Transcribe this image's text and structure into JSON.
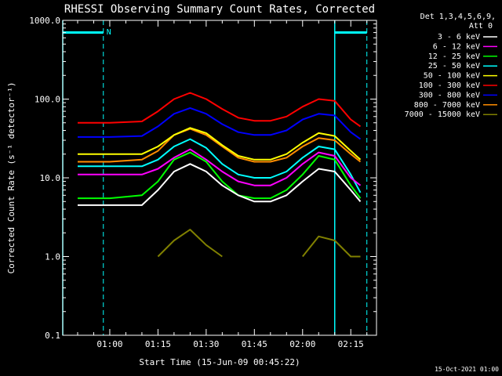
{
  "chart_data": {
    "type": "line",
    "title": "RHESSI Observing Summary Count Rates, Corrected",
    "xlabel": "Start Time (15-Jun-09 00:45:22)",
    "ylabel": "Corrected Count Rate (s⁻¹ detector⁻¹)",
    "y_scale": "log",
    "ylim": [
      0.1,
      1000.0
    ],
    "xlim": [
      "00:45:22",
      "02:23:00"
    ],
    "y_ticks": [
      "0.1",
      "1.0",
      "10.0",
      "100.0",
      "1000.0"
    ],
    "x_ticks": [
      "01:00",
      "01:15",
      "01:30",
      "01:45",
      "02:00",
      "02:15"
    ],
    "legend_header": [
      "Det 1,3,4,5,6,9,",
      "Att 0"
    ],
    "legend_placement": "right",
    "stamp": "15-Oct-2021 01:00",
    "marker_N": "N",
    "markers": {
      "night_bars": [
        [
          "00:45:22",
          "00:58:00"
        ],
        [
          "02:10:00",
          "02:20:00"
        ]
      ],
      "saa_lines": [
        "00:45:22",
        "02:10:00"
      ],
      "dashed_lines": [
        "00:58:00",
        "02:20:00"
      ]
    },
    "x": [
      "00:50",
      "01:00",
      "01:10",
      "01:15",
      "01:20",
      "01:25",
      "01:30",
      "01:35",
      "01:40",
      "01:45",
      "01:50",
      "01:55",
      "02:00",
      "02:05",
      "02:10",
      "02:15",
      "02:18"
    ],
    "series": [
      {
        "name": "3 - 6 keV",
        "color": "#ffffff",
        "values": [
          4.5,
          4.5,
          4.5,
          7.0,
          12.0,
          15.0,
          12.0,
          8.0,
          6.0,
          5.0,
          5.0,
          6.0,
          9.0,
          13.0,
          12.0,
          7.0,
          5.0
        ]
      },
      {
        "name": "6 - 12 keV",
        "color": "#ff00ff",
        "values": [
          11.0,
          11.0,
          11.0,
          13.0,
          18.0,
          23.0,
          17.0,
          12.0,
          9.0,
          8.0,
          8.0,
          10.0,
          15.0,
          21.0,
          19.0,
          10.0,
          8.0
        ]
      },
      {
        "name": "12 - 25 keV",
        "color": "#00ff00",
        "values": [
          5.5,
          5.5,
          6.0,
          9.0,
          17.0,
          21.0,
          16.0,
          9.0,
          6.0,
          5.5,
          5.5,
          7.0,
          11.0,
          19.0,
          17.0,
          8.0,
          5.5
        ]
      },
      {
        "name": "25 - 50 keV",
        "color": "#00ffff",
        "values": [
          14.0,
          14.0,
          14.0,
          17.0,
          25.0,
          31.0,
          24.0,
          15.0,
          11.0,
          10.0,
          10.0,
          12.0,
          18.0,
          25.0,
          23.0,
          11.0,
          6.5
        ]
      },
      {
        "name": "50 - 100 keV",
        "color": "#ffff00",
        "values": [
          20.0,
          20.0,
          20.0,
          25.0,
          35.0,
          43.0,
          37.0,
          26.0,
          19.0,
          17.0,
          17.0,
          20.0,
          28.0,
          37.0,
          34.0,
          22.0,
          17.0
        ]
      },
      {
        "name": "100 - 300 keV",
        "color": "#ff0000",
        "values": [
          50.0,
          50.0,
          52.0,
          70.0,
          100.0,
          120.0,
          100.0,
          75.0,
          58.0,
          53.0,
          53.0,
          60.0,
          80.0,
          100.0,
          95.0,
          55.0,
          45.0
        ]
      },
      {
        "name": "300 - 800 keV",
        "color": "#0000ff",
        "values": [
          33.0,
          33.0,
          34.0,
          45.0,
          65.0,
          77.0,
          65.0,
          48.0,
          38.0,
          35.0,
          35.0,
          40.0,
          55.0,
          65.0,
          62.0,
          38.0,
          31.0
        ]
      },
      {
        "name": "800 - 7000 keV",
        "color": "#ff8c00",
        "values": [
          16.0,
          16.0,
          17.0,
          22.0,
          35.0,
          42.0,
          35.0,
          25.0,
          18.0,
          16.0,
          16.0,
          18.0,
          25.0,
          32.0,
          30.0,
          20.0,
          16.0
        ]
      },
      {
        "name": "7000 - 15000 keV",
        "color": "#808000",
        "values": [
          null,
          null,
          null,
          1.0,
          1.6,
          2.2,
          1.4,
          1.0,
          null,
          null,
          null,
          null,
          1.0,
          1.8,
          1.6,
          1.0,
          1.0
        ]
      }
    ]
  }
}
